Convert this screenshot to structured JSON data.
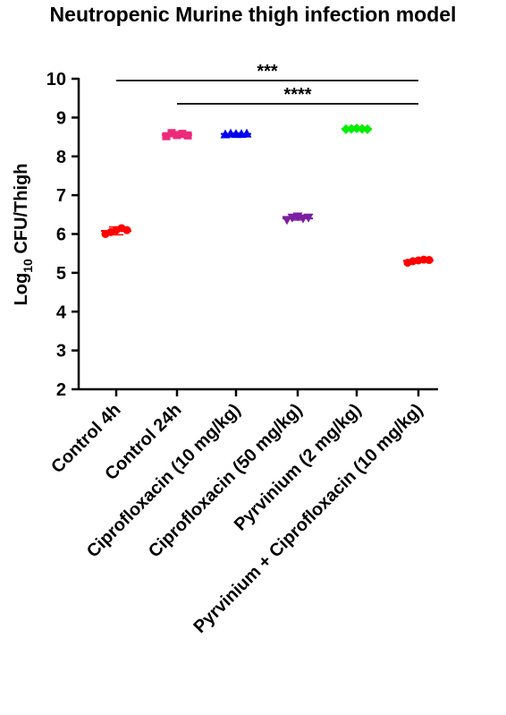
{
  "chart_data": {
    "type": "scatter",
    "title": "Neutropenic Murine thigh infection model",
    "ylabel_main": "Log",
    "ylabel_sub": "10",
    "ylabel_rest": " CFU/Thigh",
    "xlabel": "",
    "ylim": [
      2,
      10
    ],
    "yticks": [
      2,
      3,
      4,
      5,
      6,
      7,
      8,
      9,
      10
    ],
    "categories": [
      "Control 4h",
      "Control 24h",
      "Ciprofloxacin (10 mg/kg)",
      "Ciprofloxacin (50 mg/kg)",
      "Pyrvinium (2 mg/kg)",
      "Pyrvinium + Ciprofloxacin (10 mg/kg)"
    ],
    "groups": [
      {
        "color": "#ff0000",
        "marker": "circle",
        "mean": 6.08,
        "error": 0.1,
        "points": [
          6.0,
          6.05,
          6.1,
          6.15,
          6.1
        ]
      },
      {
        "color": "#ee2a7b",
        "marker": "square",
        "mean": 8.56,
        "error": 0.05,
        "points": [
          8.52,
          8.6,
          8.55,
          8.58,
          8.54
        ]
      },
      {
        "color": "#0000ee",
        "marker": "triangle-up",
        "mean": 8.58,
        "error": 0.02,
        "points": [
          8.57,
          8.59,
          8.58,
          8.58,
          8.59
        ]
      },
      {
        "color": "#7b1fa2",
        "marker": "triangle-down",
        "mean": 6.4,
        "error": 0.04,
        "points": [
          6.36,
          6.42,
          6.45,
          6.4,
          6.42
        ]
      },
      {
        "color": "#00ee00",
        "marker": "diamond",
        "mean": 8.71,
        "error": 0.02,
        "points": [
          8.7,
          8.71,
          8.72,
          8.71,
          8.7
        ]
      },
      {
        "color": "#ff0000",
        "marker": "circle",
        "mean": 5.31,
        "error": 0.04,
        "points": [
          5.26,
          5.3,
          5.32,
          5.34,
          5.33
        ]
      }
    ],
    "significance": [
      {
        "label": "***",
        "from": 0,
        "to": 5
      },
      {
        "label": "****",
        "from": 1,
        "to": 5
      }
    ],
    "grid": false,
    "legend": "none"
  }
}
